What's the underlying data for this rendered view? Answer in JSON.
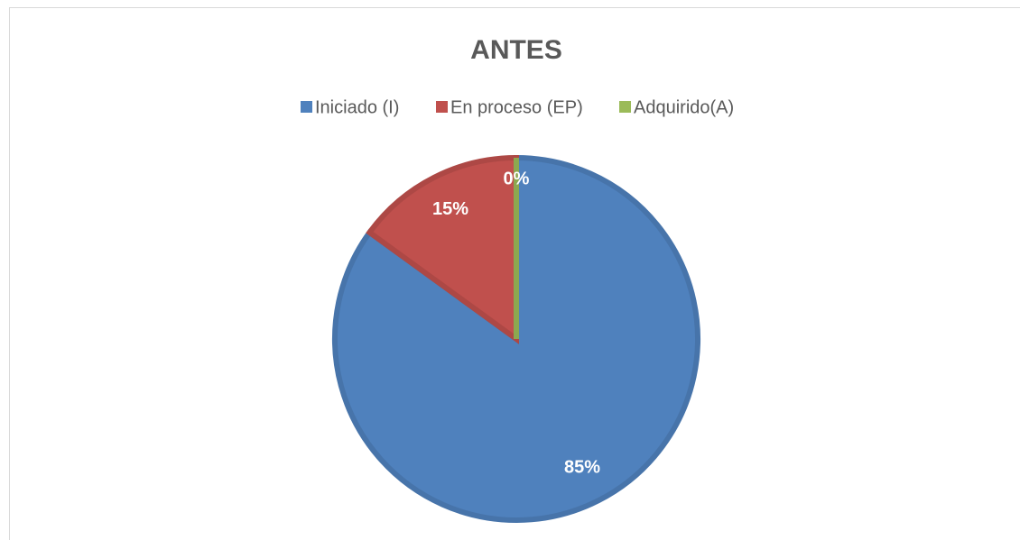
{
  "chart_data": {
    "type": "pie",
    "title": "ANTES",
    "categories": [
      "Iniciado (I)",
      "En proceso (EP)",
      "Adquirido(A)"
    ],
    "values": [
      85,
      15,
      0
    ],
    "value_labels": [
      "85%",
      "15%",
      "0%"
    ],
    "colors": [
      "#4f81bd",
      "#c0504d",
      "#9bbb59"
    ],
    "legend": "top"
  }
}
